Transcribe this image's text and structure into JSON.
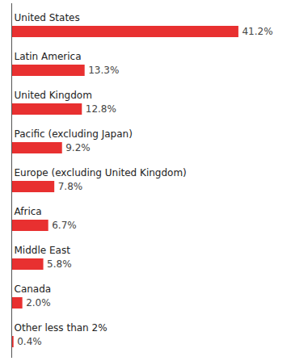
{
  "chart_data": {
    "type": "bar",
    "orientation": "horizontal",
    "categories": [
      "United States",
      "Latin America",
      "United Kingdom",
      "Pacific (excluding Japan)",
      "Europe (excluding United Kingdom)",
      "Africa",
      "Middle East",
      "Canada",
      "Other less than 2%"
    ],
    "values": [
      41.2,
      13.3,
      12.8,
      9.2,
      7.8,
      6.7,
      5.8,
      2.0,
      0.4
    ],
    "value_labels": [
      "41.2%",
      "13.3%",
      "12.8%",
      "9.2%",
      "7.8%",
      "6.7%",
      "5.8%",
      "2.0%",
      "0.4%"
    ],
    "color": "#e83030",
    "xlim": [
      0,
      44
    ],
    "data_labels": true,
    "tick_labels": false,
    "grid": false
  }
}
